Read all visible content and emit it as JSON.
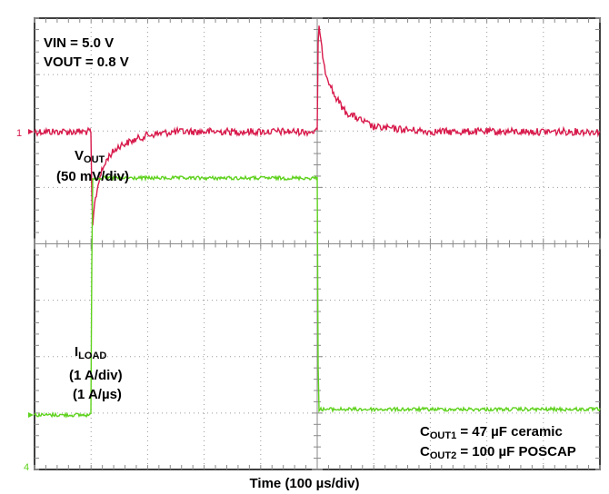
{
  "chart_data": {
    "type": "line",
    "xlabel": "Time (100 µs/div)",
    "x_divisions": 10,
    "y_divisions": 8,
    "x_unit_per_div_us": 100,
    "grid": true,
    "annotations": {
      "vin": "VIN = 5.0 V",
      "vout": "VOUT = 0.8 V",
      "vout_trace_main": "V",
      "vout_trace_sub": "OUT",
      "vout_trace_scale": "(50 mV/div)",
      "iload_trace_main": "I",
      "iload_trace_sub": "LOAD",
      "iload_trace_scale": "(1 A/div)",
      "iload_trace_slew": "(1 A/µs)",
      "cout1_main": "C",
      "cout1_sub": "OUT1",
      "cout1_rest": " = 47 µF ceramic",
      "cout2_main": "C",
      "cout2_sub": "OUT2",
      "cout2_rest": " = 100 µF POSCAP"
    },
    "series": [
      {
        "marker": "1",
        "color": "#d81b4c",
        "x_us": [
          0,
          100,
          102,
          106,
          115,
          130,
          150,
          200,
          250,
          300,
          400,
          500,
          502,
          506,
          515,
          530,
          550,
          600,
          700,
          1000
        ],
        "y_div": [
          0,
          0,
          -1.8,
          -1.3,
          -0.8,
          -0.45,
          -0.25,
          -0.06,
          0,
          0,
          0,
          0,
          2.0,
          1.6,
          1.05,
          0.65,
          0.35,
          0.08,
          0,
          0
        ]
      },
      {
        "marker": "4",
        "color": "#5fd21e",
        "x_us": [
          0,
          100,
          102,
          500,
          502,
          1000
        ],
        "y_div": [
          0,
          0,
          4.2,
          4.2,
          0.1,
          0.1
        ]
      }
    ]
  }
}
